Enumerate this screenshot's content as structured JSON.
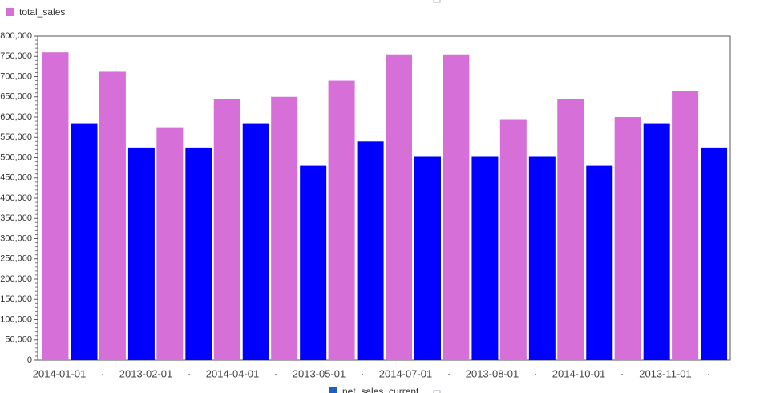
{
  "chart_data": {
    "type": "bar",
    "series": [
      {
        "name": "total_sales",
        "color": "#d670d8",
        "values": [
          760000,
          712000,
          575000,
          645000,
          650000,
          690000,
          755000,
          755000,
          595000,
          645000,
          600000,
          665000
        ]
      },
      {
        "name": "net_sales_current",
        "color": "#0000ff",
        "legend_color": "#1f5fbf",
        "values": [
          585000,
          525000,
          525000,
          585000,
          480000,
          540000,
          502000,
          502000,
          502000,
          480000,
          585000,
          525000
        ]
      }
    ],
    "x_labels": [
      "2014-01-01",
      "·",
      "2013-02-01",
      "·",
      "2014-04-01",
      "·",
      "2013-05-01",
      "·",
      "2014-07-01",
      "·",
      "2013-08-01",
      "·",
      "2014-10-01",
      "·",
      "2013-11-01",
      "·"
    ],
    "ylim": [
      0,
      800000
    ],
    "yticks": [
      0,
      {
        "value": 50000,
        "label": "50,000"
      },
      {
        "value": 100000,
        "label": "100,000"
      },
      {
        "value": 150000,
        "label": "150,000"
      },
      {
        "value": 200000,
        "label": "200,000"
      },
      {
        "value": 250000,
        "label": "250,000"
      },
      {
        "value": 300000,
        "label": "300,000"
      },
      {
        "value": 350000,
        "label": "350,000"
      },
      {
        "value": 400000,
        "label": "400,000"
      },
      {
        "value": 450000,
        "label": "450,000"
      },
      {
        "value": 500000,
        "label": "500,000"
      },
      {
        "value": 550000,
        "label": "550,000"
      },
      {
        "value": 600000,
        "label": "600,000"
      },
      {
        "value": 650000,
        "label": "650,000"
      },
      {
        "value": 700000,
        "label": "700,000"
      },
      {
        "value": 750000,
        "label": "750,000"
      },
      {
        "value": 800000,
        "label": "800,000"
      }
    ]
  }
}
